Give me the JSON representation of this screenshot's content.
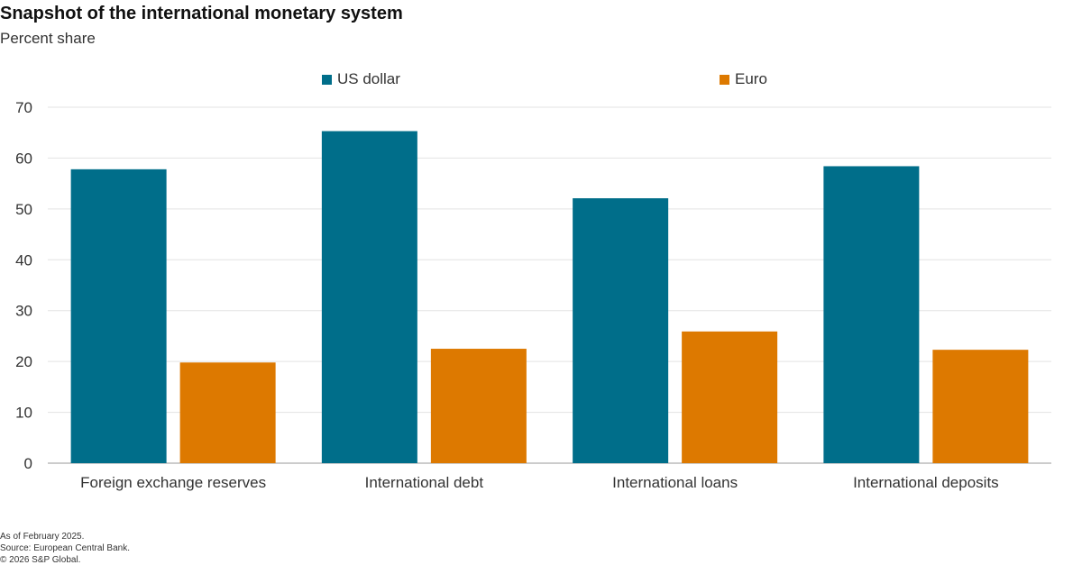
{
  "title": "Snapshot of the international monetary system",
  "subtitle": "Percent share",
  "footnotes": [
    "As of February 2025.",
    "Source: European Central Bank.",
    "© 2026 S&P Global."
  ],
  "chart_data": {
    "type": "bar",
    "title": "Snapshot of the international monetary system",
    "ylabel": "Percent share",
    "xlabel": "",
    "categories": [
      "Foreign exchange reserves",
      "International debt",
      "International loans",
      "International deposits"
    ],
    "series": [
      {
        "name": "US dollar",
        "color": "#006e8a",
        "values": [
          57.8,
          65.3,
          52.1,
          58.4
        ]
      },
      {
        "name": "Euro",
        "color": "#dd7900",
        "values": [
          19.8,
          22.5,
          25.9,
          22.3
        ]
      }
    ],
    "ylim": [
      0,
      70
    ],
    "yticks": [
      0,
      10,
      20,
      30,
      40,
      50,
      60,
      70
    ],
    "grid": true,
    "legend": "top"
  }
}
